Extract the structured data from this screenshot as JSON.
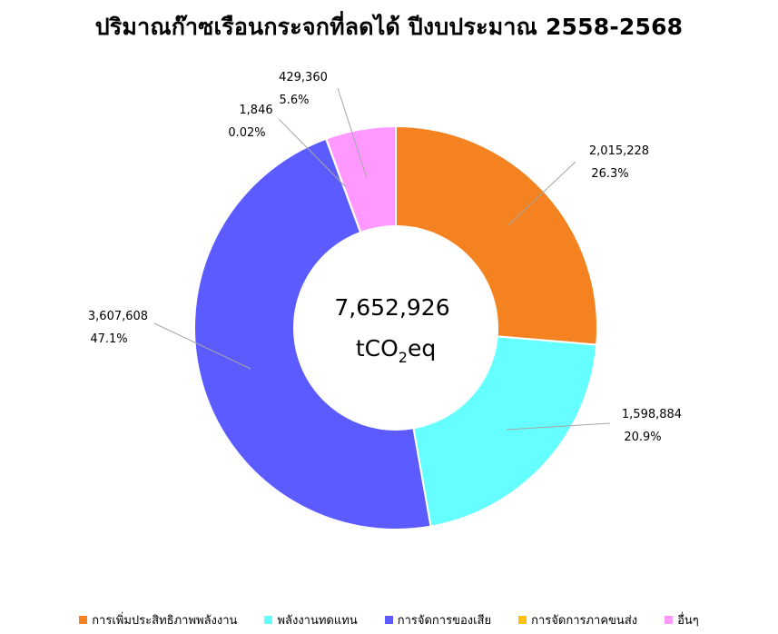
{
  "chart_data": {
    "type": "pie",
    "title": "ปริมาณก๊าซเรือนกระจกที่ลดได้ ปีงบประมาณ 2558-2568",
    "center_value": "7,652,926",
    "center_unit_prefix": "tCO",
    "center_unit_sub": "2",
    "center_unit_suffix": "eq",
    "legend_position": "bottom",
    "slices": [
      {
        "name": "การเพิ่มประสิทธิภาพพลังงาน",
        "value": 2015228,
        "value_label": "2,015,228",
        "percent_label": "26.3%",
        "color": "#F58220"
      },
      {
        "name": "พลังงานทดแทน",
        "value": 1598884,
        "value_label": "1,598,884",
        "percent_label": "20.9%",
        "color": "#66FFFF"
      },
      {
        "name": "การจัดการของเสีย",
        "value": 3607608,
        "value_label": "3,607,608",
        "percent_label": "47.1%",
        "color": "#5B5BFF"
      },
      {
        "name": "การจัดการภาคขนส่ง",
        "value": 1846,
        "value_label": "1,846",
        "percent_label": "0.02%",
        "color": "#FFC000"
      },
      {
        "name": "อื่นๆ",
        "value": 429360,
        "value_label": "429,360",
        "percent_label": "5.6%",
        "color": "#FF99FF"
      }
    ]
  }
}
